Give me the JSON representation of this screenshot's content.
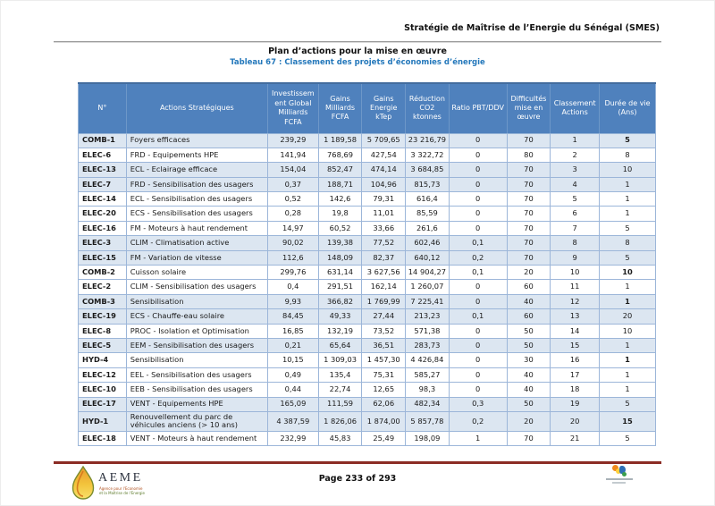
{
  "page": {
    "doc_header": "Stratégie de Maîtrise de l’Energie du Sénégal (SMES)",
    "section_title": "Plan d’actions pour la mise en œuvre",
    "table_caption": "Tableau 67 : Classement des projets d’économies d’énergie"
  },
  "table": {
    "columns": [
      {
        "label": "N°"
      },
      {
        "label": "Actions Stratégiques"
      },
      {
        "label": "Investissem ent Global Milliards FCFA"
      },
      {
        "label": "Gains Milliards FCFA"
      },
      {
        "label": "Gains Energie kTep"
      },
      {
        "label": "Réduction CO2 ktonnes"
      },
      {
        "label": "Ratio PBT/DDV"
      },
      {
        "label": "Difficultés mise en œuvre"
      },
      {
        "label": "Classement Actions"
      },
      {
        "label": "Durée de vie (Ans)"
      }
    ],
    "rows": [
      {
        "id": "COMB-1",
        "action": "Foyers efficaces",
        "invest": "239,29",
        "gains_fcfa": "1 189,58",
        "gains_ktep": "5 709,65",
        "reduction": "23 216,79",
        "ratio": "0",
        "difficulte": "70",
        "classement": "1",
        "duree": "5",
        "shaded": true,
        "duree_bold": true
      },
      {
        "id": "ELEC-6",
        "action": "FRD - Equipements HPE",
        "invest": "141,94",
        "gains_fcfa": "768,69",
        "gains_ktep": "427,54",
        "reduction": "3 322,72",
        "ratio": "0",
        "difficulte": "80",
        "classement": "2",
        "duree": "8",
        "shaded": false,
        "duree_bold": false
      },
      {
        "id": "ELEC-13",
        "action": "ECL - Eclairage efficace",
        "invest": "154,04",
        "gains_fcfa": "852,47",
        "gains_ktep": "474,14",
        "reduction": "3 684,85",
        "ratio": "0",
        "difficulte": "70",
        "classement": "3",
        "duree": "10",
        "shaded": true,
        "duree_bold": false
      },
      {
        "id": "ELEC-7",
        "action": "FRD - Sensibilisation des usagers",
        "invest": "0,37",
        "gains_fcfa": "188,71",
        "gains_ktep": "104,96",
        "reduction": "815,73",
        "ratio": "0",
        "difficulte": "70",
        "classement": "4",
        "duree": "1",
        "shaded": true,
        "duree_bold": false
      },
      {
        "id": "ELEC-14",
        "action": "ECL - Sensibilisation des usagers",
        "invest": "0,52",
        "gains_fcfa": "142,6",
        "gains_ktep": "79,31",
        "reduction": "616,4",
        "ratio": "0",
        "difficulte": "70",
        "classement": "5",
        "duree": "1",
        "shaded": false,
        "duree_bold": false
      },
      {
        "id": "ELEC-20",
        "action": "ECS - Sensibilisation des usagers",
        "invest": "0,28",
        "gains_fcfa": "19,8",
        "gains_ktep": "11,01",
        "reduction": "85,59",
        "ratio": "0",
        "difficulte": "70",
        "classement": "6",
        "duree": "1",
        "shaded": false,
        "duree_bold": false
      },
      {
        "id": "ELEC-16",
        "action": "FM - Moteurs à haut rendement",
        "invest": "14,97",
        "gains_fcfa": "60,52",
        "gains_ktep": "33,66",
        "reduction": "261,6",
        "ratio": "0",
        "difficulte": "70",
        "classement": "7",
        "duree": "5",
        "shaded": false,
        "duree_bold": false
      },
      {
        "id": "ELEC-3",
        "action": "CLIM - Climatisation active",
        "invest": "90,02",
        "gains_fcfa": "139,38",
        "gains_ktep": "77,52",
        "reduction": "602,46",
        "ratio": "0,1",
        "difficulte": "70",
        "classement": "8",
        "duree": "8",
        "shaded": true,
        "duree_bold": false
      },
      {
        "id": "ELEC-15",
        "action": "FM - Variation de vitesse",
        "invest": "112,6",
        "gains_fcfa": "148,09",
        "gains_ktep": "82,37",
        "reduction": "640,12",
        "ratio": "0,2",
        "difficulte": "70",
        "classement": "9",
        "duree": "5",
        "shaded": true,
        "duree_bold": false
      },
      {
        "id": "COMB-2",
        "action": "Cuisson solaire",
        "invest": "299,76",
        "gains_fcfa": "631,14",
        "gains_ktep": "3 627,56",
        "reduction": "14 904,27",
        "ratio": "0,1",
        "difficulte": "20",
        "classement": "10",
        "duree": "10",
        "shaded": false,
        "duree_bold": true
      },
      {
        "id": "ELEC-2",
        "action": "CLIM - Sensibilisation des usagers",
        "invest": "0,4",
        "gains_fcfa": "291,51",
        "gains_ktep": "162,14",
        "reduction": "1 260,07",
        "ratio": "0",
        "difficulte": "60",
        "classement": "11",
        "duree": "1",
        "shaded": false,
        "duree_bold": false
      },
      {
        "id": "COMB-3",
        "action": "Sensibilisation",
        "invest": "9,93",
        "gains_fcfa": "366,82",
        "gains_ktep": "1 769,99",
        "reduction": "7 225,41",
        "ratio": "0",
        "difficulte": "40",
        "classement": "12",
        "duree": "1",
        "shaded": true,
        "duree_bold": true
      },
      {
        "id": "ELEC-19",
        "action": "ECS - Chauffe-eau solaire",
        "invest": "84,45",
        "gains_fcfa": "49,33",
        "gains_ktep": "27,44",
        "reduction": "213,23",
        "ratio": "0,1",
        "difficulte": "60",
        "classement": "13",
        "duree": "20",
        "shaded": true,
        "duree_bold": false
      },
      {
        "id": "ELEC-8",
        "action": "PROC - Isolation et Optimisation",
        "invest": "16,85",
        "gains_fcfa": "132,19",
        "gains_ktep": "73,52",
        "reduction": "571,38",
        "ratio": "0",
        "difficulte": "50",
        "classement": "14",
        "duree": "10",
        "shaded": false,
        "duree_bold": false
      },
      {
        "id": "ELEC-5",
        "action": "EEM - Sensibilisation des usagers",
        "invest": "0,21",
        "gains_fcfa": "65,64",
        "gains_ktep": "36,51",
        "reduction": "283,73",
        "ratio": "0",
        "difficulte": "50",
        "classement": "15",
        "duree": "1",
        "shaded": true,
        "duree_bold": false
      },
      {
        "id": "HYD-4",
        "action": "Sensibilisation",
        "invest": "10,15",
        "gains_fcfa": "1 309,03",
        "gains_ktep": "1 457,30",
        "reduction": "4 426,84",
        "ratio": "0",
        "difficulte": "30",
        "classement": "16",
        "duree": "1",
        "shaded": false,
        "duree_bold": true
      },
      {
        "id": "ELEC-12",
        "action": "EEL - Sensibilisation des usagers",
        "invest": "0,49",
        "gains_fcfa": "135,4",
        "gains_ktep": "75,31",
        "reduction": "585,27",
        "ratio": "0",
        "difficulte": "40",
        "classement": "17",
        "duree": "1",
        "shaded": false,
        "duree_bold": false
      },
      {
        "id": "ELEC-10",
        "action": "EEB - Sensibilisation des usagers",
        "invest": "0,44",
        "gains_fcfa": "22,74",
        "gains_ktep": "12,65",
        "reduction": "98,3",
        "ratio": "0",
        "difficulte": "40",
        "classement": "18",
        "duree": "1",
        "shaded": false,
        "duree_bold": false
      },
      {
        "id": "ELEC-17",
        "action": "VENT - Equipements HPE",
        "invest": "165,09",
        "gains_fcfa": "111,59",
        "gains_ktep": "62,06",
        "reduction": "482,34",
        "ratio": "0,3",
        "difficulte": "50",
        "classement": "19",
        "duree": "5",
        "shaded": true,
        "duree_bold": false
      },
      {
        "id": "HYD-1",
        "action": "Renouvellement du parc de véhicules anciens (> 10 ans)",
        "invest": "4 387,59",
        "gains_fcfa": "1 826,06",
        "gains_ktep": "1 874,00",
        "reduction": "5 857,78",
        "ratio": "0,2",
        "difficulte": "20",
        "classement": "20",
        "duree": "15",
        "shaded": true,
        "duree_bold": true
      },
      {
        "id": "ELEC-18",
        "action": "VENT - Moteurs à haut rendement",
        "invest": "232,99",
        "gains_fcfa": "45,83",
        "gains_ktep": "25,49",
        "reduction": "198,09",
        "ratio": "1",
        "difficulte": "70",
        "classement": "21",
        "duree": "5",
        "shaded": false,
        "duree_bold": false
      }
    ]
  },
  "footer": {
    "page_label": "Page 233 of 293",
    "logo": {
      "text": "AEME",
      "subtext_line1": "Agence pour l'Economie",
      "subtext_line2": "et la Maîtrise de l'Energie"
    }
  },
  "colors": {
    "header_bg": "#4f81bd",
    "row_shaded": "#dce6f1",
    "table_border": "#9cb6d9",
    "caption_blue": "#2478bb",
    "footer_rule": "#8b2c24"
  }
}
